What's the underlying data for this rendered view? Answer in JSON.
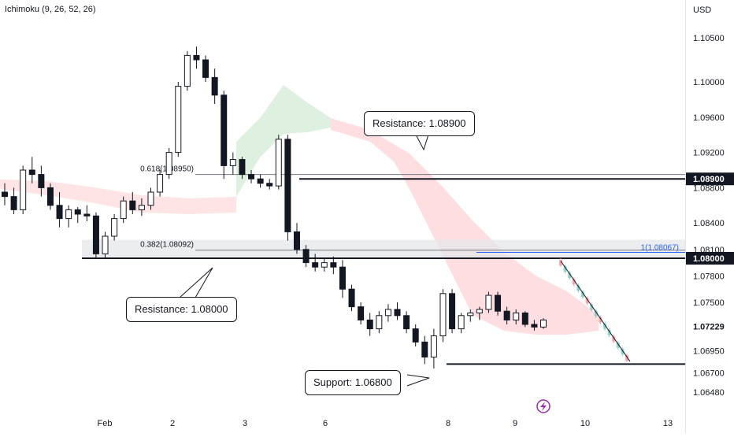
{
  "indicator": "Ichimoku (9, 26, 52, 26)",
  "currency": "USD",
  "colors": {
    "up": "#26a69a",
    "down": "#131722",
    "cloud_bull": "#c8e6c9",
    "cloud_bear": "#ffcdd2",
    "fib_line": "#787b86",
    "blue_line": "#2962ff",
    "event_icon": "#9c27b0"
  },
  "chart_data": {
    "type": "candlestick",
    "y_axis": {
      "min": 1.064,
      "max": 1.107,
      "ticks": [
        "1.06480",
        "1.06700",
        "1.06950",
        "1.07229",
        "1.07500",
        "1.07800",
        "1.08000",
        "1.08100",
        "1.08400",
        "1.08800",
        "1.08900",
        "1.09200",
        "1.09600",
        "1.10000",
        "1.10500"
      ],
      "highlighted": [
        "1.08900",
        "1.08000",
        "1.06800"
      ]
    },
    "x_axis": {
      "ticks": [
        "Feb",
        "2",
        "3",
        "6",
        "8",
        "9",
        "10",
        "13"
      ]
    },
    "series": [
      {
        "o": 1.0875,
        "h": 1.0885,
        "l": 1.086,
        "c": 1.087
      },
      {
        "o": 1.087,
        "h": 1.088,
        "l": 1.085,
        "c": 1.0855
      },
      {
        "o": 1.0855,
        "h": 1.0905,
        "l": 1.085,
        "c": 1.09
      },
      {
        "o": 1.09,
        "h": 1.0915,
        "l": 1.0885,
        "c": 1.0895
      },
      {
        "o": 1.0895,
        "h": 1.0905,
        "l": 1.087,
        "c": 1.088
      },
      {
        "o": 1.088,
        "h": 1.0885,
        "l": 1.0855,
        "c": 1.086
      },
      {
        "o": 1.086,
        "h": 1.0875,
        "l": 1.0835,
        "c": 1.0845
      },
      {
        "o": 1.0845,
        "h": 1.086,
        "l": 1.0835,
        "c": 1.0855
      },
      {
        "o": 1.0855,
        "h": 1.0858,
        "l": 1.084,
        "c": 1.085
      },
      {
        "o": 1.085,
        "h": 1.086,
        "l": 1.0842,
        "c": 1.0848
      },
      {
        "o": 1.0848,
        "h": 1.0852,
        "l": 1.08,
        "c": 1.0805
      },
      {
        "o": 1.0805,
        "h": 1.083,
        "l": 1.08,
        "c": 1.0825
      },
      {
        "o": 1.0825,
        "h": 1.085,
        "l": 1.082,
        "c": 1.0845
      },
      {
        "o": 1.0845,
        "h": 1.087,
        "l": 1.084,
        "c": 1.0865
      },
      {
        "o": 1.0865,
        "h": 1.0875,
        "l": 1.085,
        "c": 1.0855
      },
      {
        "o": 1.0855,
        "h": 1.0868,
        "l": 1.0848,
        "c": 1.086
      },
      {
        "o": 1.086,
        "h": 1.088,
        "l": 1.0855,
        "c": 1.0875
      },
      {
        "o": 1.0875,
        "h": 1.09,
        "l": 1.087,
        "c": 1.0895
      },
      {
        "o": 1.0895,
        "h": 1.0925,
        "l": 1.089,
        "c": 1.092
      },
      {
        "o": 1.092,
        "h": 1.1,
        "l": 1.0915,
        "c": 1.0995
      },
      {
        "o": 1.0995,
        "h": 1.1035,
        "l": 1.099,
        "c": 1.103
      },
      {
        "o": 1.103,
        "h": 1.104,
        "l": 1.1015,
        "c": 1.1025
      },
      {
        "o": 1.1025,
        "h": 1.103,
        "l": 1.1,
        "c": 1.1005
      },
      {
        "o": 1.1005,
        "h": 1.1015,
        "l": 1.0975,
        "c": 1.0985
      },
      {
        "o": 1.0985,
        "h": 1.099,
        "l": 1.089,
        "c": 1.0905
      },
      {
        "o": 1.0905,
        "h": 1.092,
        "l": 1.0895,
        "c": 1.0912
      },
      {
        "o": 1.0912,
        "h": 1.0915,
        "l": 1.089,
        "c": 1.0895
      },
      {
        "o": 1.0895,
        "h": 1.09,
        "l": 1.0885,
        "c": 1.089
      },
      {
        "o": 1.089,
        "h": 1.0895,
        "l": 1.088,
        "c": 1.0885
      },
      {
        "o": 1.0885,
        "h": 1.089,
        "l": 1.0878,
        "c": 1.0882
      },
      {
        "o": 1.0882,
        "h": 1.094,
        "l": 1.0878,
        "c": 1.0935
      },
      {
        "o": 1.0935,
        "h": 1.094,
        "l": 1.082,
        "c": 1.083
      },
      {
        "o": 1.083,
        "h": 1.084,
        "l": 1.0805,
        "c": 1.081
      },
      {
        "o": 1.081,
        "h": 1.0815,
        "l": 1.079,
        "c": 1.0795
      },
      {
        "o": 1.0795,
        "h": 1.0805,
        "l": 1.0785,
        "c": 1.079
      },
      {
        "o": 1.079,
        "h": 1.08,
        "l": 1.0785,
        "c": 1.0795
      },
      {
        "o": 1.0795,
        "h": 1.0802,
        "l": 1.0782,
        "c": 1.079
      },
      {
        "o": 1.079,
        "h": 1.0798,
        "l": 1.0755,
        "c": 1.0765
      },
      {
        "o": 1.0765,
        "h": 1.077,
        "l": 1.074,
        "c": 1.0745
      },
      {
        "o": 1.0745,
        "h": 1.075,
        "l": 1.0725,
        "c": 1.073
      },
      {
        "o": 1.073,
        "h": 1.0738,
        "l": 1.0712,
        "c": 1.072
      },
      {
        "o": 1.072,
        "h": 1.074,
        "l": 1.0715,
        "c": 1.0735
      },
      {
        "o": 1.0735,
        "h": 1.0748,
        "l": 1.0728,
        "c": 1.0742
      },
      {
        "o": 1.0742,
        "h": 1.075,
        "l": 1.073,
        "c": 1.0735
      },
      {
        "o": 1.0735,
        "h": 1.074,
        "l": 1.0715,
        "c": 1.072
      },
      {
        "o": 1.072,
        "h": 1.0725,
        "l": 1.07,
        "c": 1.0705
      },
      {
        "o": 1.0705,
        "h": 1.0712,
        "l": 1.068,
        "c": 1.0688
      },
      {
        "o": 1.0688,
        "h": 1.072,
        "l": 1.0675,
        "c": 1.0712
      },
      {
        "o": 1.0712,
        "h": 1.0765,
        "l": 1.0705,
        "c": 1.076
      },
      {
        "o": 1.076,
        "h": 1.0765,
        "l": 1.0715,
        "c": 1.072
      },
      {
        "o": 1.072,
        "h": 1.0738,
        "l": 1.0715,
        "c": 1.0735
      },
      {
        "o": 1.0735,
        "h": 1.0742,
        "l": 1.0728,
        "c": 1.0738
      },
      {
        "o": 1.0738,
        "h": 1.0745,
        "l": 1.073,
        "c": 1.0742
      },
      {
        "o": 1.0742,
        "h": 1.0762,
        "l": 1.0738,
        "c": 1.0758
      },
      {
        "o": 1.0758,
        "h": 1.0762,
        "l": 1.0735,
        "c": 1.074
      },
      {
        "o": 1.074,
        "h": 1.0745,
        "l": 1.0725,
        "c": 1.073
      },
      {
        "o": 1.073,
        "h": 1.0742,
        "l": 1.0725,
        "c": 1.0738
      },
      {
        "o": 1.0738,
        "h": 1.074,
        "l": 1.0722,
        "c": 1.0725
      },
      {
        "o": 1.0725,
        "h": 1.073,
        "l": 1.0718,
        "c": 1.0722
      },
      {
        "o": 1.0722,
        "h": 1.0732,
        "l": 1.072,
        "c": 1.073
      }
    ],
    "lines": [
      {
        "label": "Resistance: 1.08900",
        "value": 1.089
      },
      {
        "label": "Resistance: 1.08000",
        "value": 1.08
      },
      {
        "label": "Support: 1.06800",
        "value": 1.068
      }
    ],
    "fib_levels": [
      {
        "label": "0.618(1.08950)",
        "value": 1.0895
      },
      {
        "label": "0.382(1.08092)",
        "value": 1.08092
      }
    ],
    "blue_level": {
      "label": "1(1.08067)",
      "value": 1.08067
    },
    "current_price": {
      "label": "1.07229",
      "value": 1.07229
    },
    "event_icon": "lightning-icon"
  }
}
